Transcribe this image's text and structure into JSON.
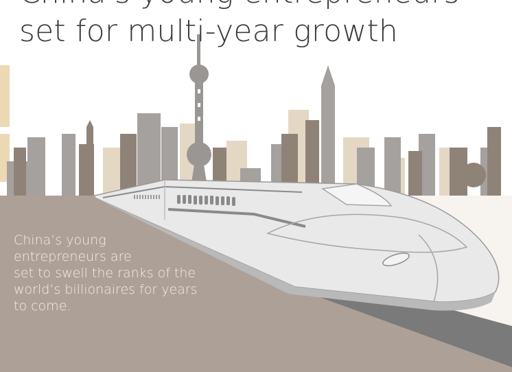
{
  "headline": {
    "line1": "China's young entrepreneurs",
    "line2": "set for multi-year growth"
  },
  "blurb": {
    "line1": "China’s young",
    "line2": "entrepreneurs are",
    "line3": "set to swell the ranks of the",
    "line4": "world’s billionaires for years",
    "line5": "to come."
  },
  "colors": {
    "ground": "#ada197",
    "ground_edge": "#cfc6bd",
    "floor": "#f7f4f0",
    "skyline_gray": "#a5a19e",
    "skyline_brown": "#8f8378",
    "skyline_tan": "#e4d8c5",
    "train_body": "#e9e9e9",
    "train_shadow": "#b9b9b9",
    "track": "#7a7a7a",
    "text_dark": "#3a3a3a",
    "text_light": "#f2ede6"
  },
  "icons": [
    "skyline-illustration",
    "bullet-train-illustration",
    "tv-tower-icon"
  ]
}
